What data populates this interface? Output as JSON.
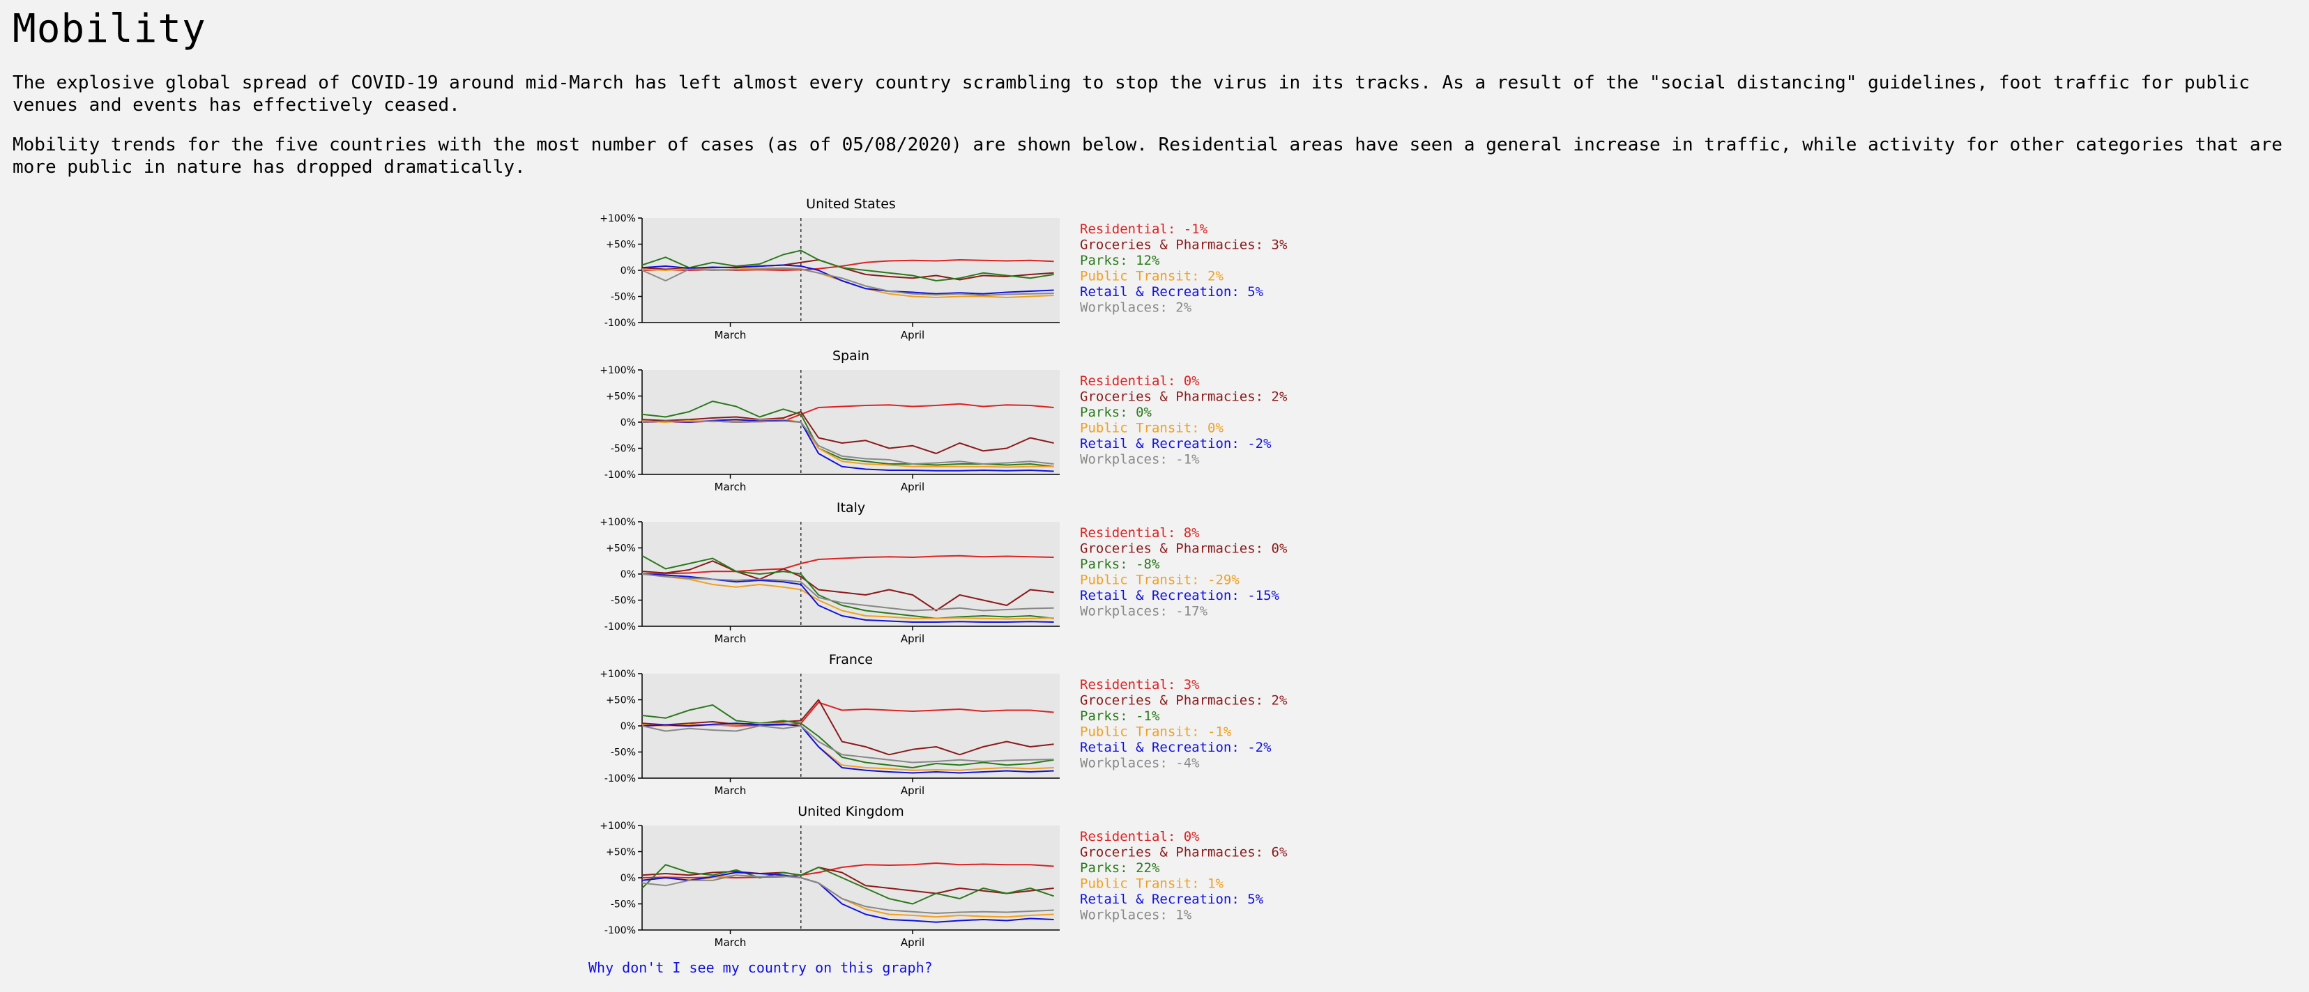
{
  "page": {
    "title": "Mobility",
    "intro": "The explosive global spread of COVID-19 around mid-March has left almost every country scrambling to stop the virus in its tracks. As a result of the \"social distancing\" guidelines, foot traffic for public venues and events has effectively ceased.",
    "description": "Mobility trends for the five countries with the most number of cases (as of 05/08/2020) are shown below. Residential areas have seen a general increase in traffic, while activity for other categories that are more public in nature has dropped dramatically.",
    "note_link": "Why don't I see my country on this graph?"
  },
  "chart_data": [
    {
      "type": "line",
      "title": "United States",
      "xlabel": "",
      "ylabel": "",
      "x_ticks": [
        "March",
        "April"
      ],
      "y_ticks": [
        "+100%",
        "+50%",
        "0%",
        "-50%",
        "-100%"
      ],
      "ylim": [
        -100,
        100
      ],
      "x": [
        "2020-02-15",
        "2020-02-19",
        "2020-02-23",
        "2020-02-27",
        "2020-03-02",
        "2020-03-06",
        "2020-03-10",
        "2020-03-13",
        "2020-03-16",
        "2020-03-20",
        "2020-03-24",
        "2020-03-28",
        "2020-04-01",
        "2020-04-05",
        "2020-04-09",
        "2020-04-13",
        "2020-04-17",
        "2020-04-21",
        "2020-04-25"
      ],
      "grid": false,
      "legend": "right",
      "series": [
        {
          "name": "Residential",
          "color": "#dd2222",
          "latest": "-1%",
          "values": [
            0,
            1,
            0,
            1,
            0,
            1,
            0,
            1,
            3,
            8,
            15,
            18,
            19,
            18,
            20,
            19,
            18,
            19,
            17
          ]
        },
        {
          "name": "Groceries & Pharmacies",
          "color": "#8b1a1a",
          "latest": "3%",
          "values": [
            5,
            2,
            4,
            5,
            6,
            8,
            10,
            15,
            20,
            5,
            -8,
            -12,
            -15,
            -10,
            -18,
            -10,
            -12,
            -8,
            -5
          ]
        },
        {
          "name": "Parks",
          "color": "#2a7a1a",
          "latest": "12%",
          "values": [
            10,
            25,
            5,
            15,
            8,
            12,
            30,
            38,
            20,
            5,
            0,
            -5,
            -10,
            -20,
            -15,
            -5,
            -10,
            -15,
            -8
          ]
        },
        {
          "name": "Public Transit",
          "color": "#f0a020",
          "latest": "2%",
          "values": [
            2,
            0,
            3,
            1,
            2,
            4,
            5,
            3,
            -5,
            -20,
            -35,
            -45,
            -50,
            -52,
            -50,
            -50,
            -52,
            -50,
            -48
          ]
        },
        {
          "name": "Retail & Recreation",
          "color": "#1010e0",
          "latest": "5%",
          "values": [
            5,
            8,
            4,
            6,
            5,
            8,
            10,
            8,
            0,
            -20,
            -35,
            -40,
            -42,
            -45,
            -43,
            -45,
            -42,
            -40,
            -38
          ]
        },
        {
          "name": "Workplaces",
          "color": "#888888",
          "latest": "2%",
          "values": [
            0,
            -20,
            2,
            0,
            1,
            2,
            3,
            2,
            -5,
            -15,
            -30,
            -40,
            -45,
            -47,
            -45,
            -48,
            -46,
            -45,
            -44
          ]
        }
      ]
    },
    {
      "type": "line",
      "title": "Spain",
      "xlabel": "",
      "ylabel": "",
      "x_ticks": [
        "March",
        "April"
      ],
      "y_ticks": [
        "+100%",
        "+50%",
        "0%",
        "-50%",
        "-100%"
      ],
      "ylim": [
        -100,
        100
      ],
      "x": [
        "2020-02-15",
        "2020-02-19",
        "2020-02-23",
        "2020-02-27",
        "2020-03-02",
        "2020-03-06",
        "2020-03-10",
        "2020-03-13",
        "2020-03-16",
        "2020-03-20",
        "2020-03-24",
        "2020-03-28",
        "2020-04-01",
        "2020-04-05",
        "2020-04-09",
        "2020-04-13",
        "2020-04-17",
        "2020-04-21",
        "2020-04-25"
      ],
      "grid": false,
      "legend": "right",
      "series": [
        {
          "name": "Residential",
          "color": "#dd2222",
          "latest": "0%",
          "values": [
            0,
            1,
            0,
            2,
            0,
            1,
            2,
            15,
            28,
            30,
            32,
            33,
            30,
            32,
            35,
            30,
            33,
            32,
            28
          ]
        },
        {
          "name": "Groceries & Pharmacies",
          "color": "#8b1a1a",
          "latest": "2%",
          "values": [
            5,
            3,
            5,
            8,
            10,
            5,
            8,
            20,
            -30,
            -40,
            -35,
            -50,
            -45,
            -60,
            -40,
            -55,
            -50,
            -30,
            -40
          ]
        },
        {
          "name": "Parks",
          "color": "#2a7a1a",
          "latest": "0%",
          "values": [
            15,
            10,
            20,
            40,
            30,
            10,
            25,
            15,
            -50,
            -70,
            -75,
            -80,
            -80,
            -82,
            -80,
            -80,
            -82,
            -80,
            -85
          ]
        },
        {
          "name": "Public Transit",
          "color": "#f0a020",
          "latest": "0%",
          "values": [
            2,
            0,
            3,
            1,
            2,
            4,
            5,
            0,
            -50,
            -75,
            -80,
            -82,
            -85,
            -85,
            -85,
            -85,
            -86,
            -85,
            -85
          ]
        },
        {
          "name": "Retail & Recreation",
          "color": "#1010e0",
          "latest": "-2%",
          "values": [
            0,
            2,
            0,
            3,
            5,
            2,
            3,
            0,
            -60,
            -85,
            -90,
            -92,
            -92,
            -93,
            -93,
            -92,
            -93,
            -92,
            -94
          ]
        },
        {
          "name": "Workplaces",
          "color": "#888888",
          "latest": "-1%",
          "values": [
            0,
            2,
            1,
            2,
            0,
            1,
            2,
            0,
            -45,
            -65,
            -70,
            -72,
            -80,
            -78,
            -75,
            -80,
            -78,
            -75,
            -80
          ]
        }
      ]
    },
    {
      "type": "line",
      "title": "Italy",
      "xlabel": "",
      "ylabel": "",
      "x_ticks": [
        "March",
        "April"
      ],
      "y_ticks": [
        "+100%",
        "+50%",
        "0%",
        "-50%",
        "-100%"
      ],
      "ylim": [
        -100,
        100
      ],
      "x": [
        "2020-02-15",
        "2020-02-19",
        "2020-02-23",
        "2020-02-27",
        "2020-03-02",
        "2020-03-06",
        "2020-03-10",
        "2020-03-13",
        "2020-03-16",
        "2020-03-20",
        "2020-03-24",
        "2020-03-28",
        "2020-04-01",
        "2020-04-05",
        "2020-04-09",
        "2020-04-13",
        "2020-04-17",
        "2020-04-21",
        "2020-04-25"
      ],
      "grid": false,
      "legend": "right",
      "series": [
        {
          "name": "Residential",
          "color": "#dd2222",
          "latest": "8%",
          "values": [
            0,
            1,
            2,
            5,
            5,
            8,
            10,
            20,
            28,
            30,
            32,
            33,
            32,
            34,
            35,
            33,
            34,
            33,
            32
          ]
        },
        {
          "name": "Groceries & Pharmacies",
          "color": "#8b1a1a",
          "latest": "0%",
          "values": [
            5,
            2,
            8,
            25,
            5,
            -10,
            10,
            -5,
            -30,
            -35,
            -40,
            -30,
            -40,
            -70,
            -40,
            -50,
            -60,
            -30,
            -35
          ]
        },
        {
          "name": "Parks",
          "color": "#2a7a1a",
          "latest": "-8%",
          "values": [
            35,
            10,
            20,
            30,
            5,
            0,
            5,
            0,
            -40,
            -60,
            -70,
            -75,
            -80,
            -85,
            -82,
            -80,
            -82,
            -80,
            -85
          ]
        },
        {
          "name": "Public Transit",
          "color": "#f0a020",
          "latest": "-29%",
          "values": [
            0,
            -5,
            -10,
            -20,
            -25,
            -20,
            -25,
            -30,
            -50,
            -70,
            -80,
            -82,
            -85,
            -85,
            -84,
            -85,
            -86,
            -85,
            -84
          ]
        },
        {
          "name": "Retail & Recreation",
          "color": "#1010e0",
          "latest": "-15%",
          "values": [
            0,
            -2,
            -5,
            -10,
            -15,
            -12,
            -15,
            -20,
            -60,
            -80,
            -88,
            -90,
            -92,
            -92,
            -91,
            -92,
            -92,
            -91,
            -92
          ]
        },
        {
          "name": "Workplaces",
          "color": "#888888",
          "latest": "-17%",
          "values": [
            0,
            -5,
            -8,
            -10,
            -12,
            -10,
            -12,
            -15,
            -45,
            -55,
            -60,
            -65,
            -70,
            -68,
            -65,
            -70,
            -68,
            -66,
            -65
          ]
        }
      ]
    },
    {
      "type": "line",
      "title": "France",
      "xlabel": "",
      "ylabel": "",
      "x_ticks": [
        "March",
        "April"
      ],
      "y_ticks": [
        "+100%",
        "+50%",
        "0%",
        "-50%",
        "-100%"
      ],
      "ylim": [
        -100,
        100
      ],
      "x": [
        "2020-02-15",
        "2020-02-19",
        "2020-02-23",
        "2020-02-27",
        "2020-03-02",
        "2020-03-06",
        "2020-03-10",
        "2020-03-13",
        "2020-03-16",
        "2020-03-20",
        "2020-03-24",
        "2020-03-28",
        "2020-04-01",
        "2020-04-05",
        "2020-04-09",
        "2020-04-13",
        "2020-04-17",
        "2020-04-21",
        "2020-04-25"
      ],
      "grid": false,
      "legend": "right",
      "series": [
        {
          "name": "Residential",
          "color": "#dd2222",
          "latest": "3%",
          "values": [
            0,
            1,
            0,
            2,
            0,
            1,
            2,
            5,
            45,
            30,
            32,
            30,
            28,
            30,
            32,
            28,
            30,
            30,
            26
          ]
        },
        {
          "name": "Groceries & Pharmacies",
          "color": "#8b1a1a",
          "latest": "2%",
          "values": [
            5,
            2,
            5,
            8,
            3,
            5,
            8,
            10,
            50,
            -30,
            -40,
            -55,
            -45,
            -40,
            -55,
            -40,
            -30,
            -40,
            -35
          ]
        },
        {
          "name": "Parks",
          "color": "#2a7a1a",
          "latest": "-1%",
          "values": [
            20,
            15,
            30,
            40,
            10,
            5,
            10,
            5,
            -20,
            -60,
            -70,
            -75,
            -80,
            -72,
            -75,
            -70,
            -75,
            -72,
            -65
          ]
        },
        {
          "name": "Public Transit",
          "color": "#f0a020",
          "latest": "-1%",
          "values": [
            2,
            0,
            3,
            1,
            2,
            4,
            5,
            0,
            -40,
            -75,
            -80,
            -82,
            -85,
            -84,
            -85,
            -82,
            -80,
            -82,
            -80
          ]
        },
        {
          "name": "Retail & Recreation",
          "color": "#1010e0",
          "latest": "-2%",
          "values": [
            0,
            2,
            0,
            3,
            5,
            2,
            3,
            0,
            -40,
            -80,
            -85,
            -88,
            -90,
            -88,
            -90,
            -88,
            -86,
            -88,
            -86
          ]
        },
        {
          "name": "Workplaces",
          "color": "#888888",
          "latest": "-4%",
          "values": [
            0,
            -10,
            -5,
            -8,
            -10,
            0,
            -5,
            0,
            -30,
            -55,
            -60,
            -65,
            -70,
            -68,
            -65,
            -68,
            -66,
            -65,
            -64
          ]
        }
      ]
    },
    {
      "type": "line",
      "title": "United Kingdom",
      "xlabel": "",
      "ylabel": "",
      "x_ticks": [
        "March",
        "April"
      ],
      "y_ticks": [
        "+100%",
        "+50%",
        "0%",
        "-50%",
        "-100%"
      ],
      "ylim": [
        -100,
        100
      ],
      "x": [
        "2020-02-15",
        "2020-02-19",
        "2020-02-23",
        "2020-02-27",
        "2020-03-02",
        "2020-03-06",
        "2020-03-10",
        "2020-03-13",
        "2020-03-16",
        "2020-03-20",
        "2020-03-24",
        "2020-03-28",
        "2020-04-01",
        "2020-04-05",
        "2020-04-09",
        "2020-04-13",
        "2020-04-17",
        "2020-04-21",
        "2020-04-25"
      ],
      "grid": false,
      "legend": "right",
      "series": [
        {
          "name": "Residential",
          "color": "#dd2222",
          "latest": "0%",
          "values": [
            0,
            1,
            0,
            1,
            0,
            1,
            2,
            5,
            10,
            20,
            25,
            24,
            25,
            28,
            25,
            26,
            25,
            25,
            22
          ]
        },
        {
          "name": "Groceries & Pharmacies",
          "color": "#8b1a1a",
          "latest": "6%",
          "values": [
            5,
            8,
            5,
            10,
            12,
            8,
            10,
            5,
            20,
            10,
            -15,
            -20,
            -25,
            -30,
            -20,
            -25,
            -30,
            -25,
            -20
          ]
        },
        {
          "name": "Parks",
          "color": "#2a7a1a",
          "latest": "22%",
          "values": [
            -20,
            25,
            10,
            5,
            15,
            0,
            10,
            5,
            20,
            0,
            -20,
            -40,
            -50,
            -30,
            -40,
            -20,
            -30,
            -20,
            -35
          ]
        },
        {
          "name": "Public Transit",
          "color": "#f0a020",
          "latest": "1%",
          "values": [
            -5,
            0,
            -5,
            0,
            5,
            2,
            3,
            0,
            -10,
            -40,
            -60,
            -70,
            -72,
            -75,
            -72,
            -74,
            -75,
            -72,
            -70
          ]
        },
        {
          "name": "Retail & Recreation",
          "color": "#1010e0",
          "latest": "5%",
          "values": [
            -5,
            0,
            -5,
            2,
            10,
            8,
            5,
            0,
            -10,
            -50,
            -70,
            -80,
            -82,
            -85,
            -82,
            -80,
            -82,
            -78,
            -80
          ]
        },
        {
          "name": "Workplaces",
          "color": "#888888",
          "latest": "1%",
          "values": [
            -10,
            -15,
            -5,
            -5,
            5,
            2,
            3,
            0,
            -10,
            -40,
            -55,
            -62,
            -65,
            -68,
            -66,
            -65,
            -66,
            -64,
            -62
          ]
        }
      ]
    }
  ]
}
